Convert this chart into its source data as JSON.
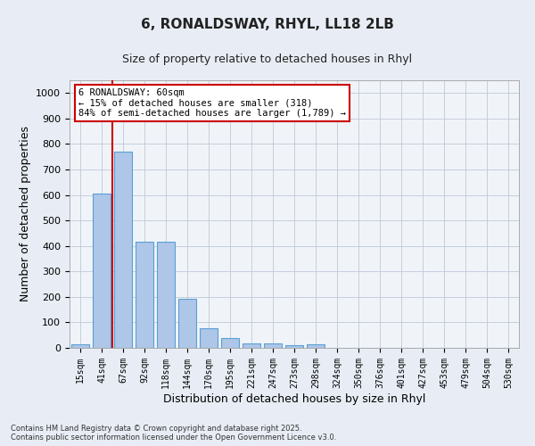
{
  "title1": "6, RONALDSWAY, RHYL, LL18 2LB",
  "title2": "Size of property relative to detached houses in Rhyl",
  "xlabel": "Distribution of detached houses by size in Rhyl",
  "ylabel": "Number of detached properties",
  "categories": [
    "15sqm",
    "41sqm",
    "67sqm",
    "92sqm",
    "118sqm",
    "144sqm",
    "170sqm",
    "195sqm",
    "221sqm",
    "247sqm",
    "273sqm",
    "298sqm",
    "324sqm",
    "350sqm",
    "376sqm",
    "401sqm",
    "427sqm",
    "453sqm",
    "479sqm",
    "504sqm",
    "530sqm"
  ],
  "values": [
    15,
    605,
    770,
    415,
    415,
    193,
    78,
    40,
    18,
    18,
    12,
    14,
    0,
    0,
    0,
    0,
    0,
    0,
    0,
    0,
    0
  ],
  "bar_color": "#aec6e8",
  "bar_edge_color": "#5a9fd4",
  "vline_color": "#cc0000",
  "annotation_title": "6 RONALDSWAY: 60sqm",
  "annotation_line1": "← 15% of detached houses are smaller (318)",
  "annotation_line2": "84% of semi-detached houses are larger (1,789) →",
  "annotation_box_color": "#cc0000",
  "ylim": [
    0,
    1050
  ],
  "yticks": [
    0,
    100,
    200,
    300,
    400,
    500,
    600,
    700,
    800,
    900,
    1000
  ],
  "footnote1": "Contains HM Land Registry data © Crown copyright and database right 2025.",
  "footnote2": "Contains public sector information licensed under the Open Government Licence v3.0.",
  "bg_color": "#e8edf5",
  "plot_bg_color": "#f0f4f9"
}
